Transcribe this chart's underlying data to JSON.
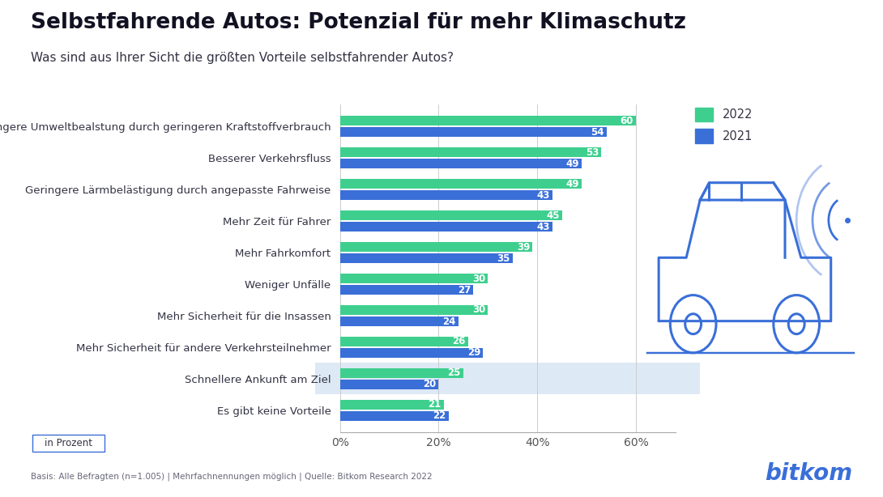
{
  "title": "Selbstfahrende Autos: Potenzial für mehr Klimaschutz",
  "subtitle": "Was sind aus Ihrer Sicht die größten Vorteile selbstfahrender Autos?",
  "categories": [
    "Es gibt keine Vorteile",
    "Schnellere Ankunft am Ziel",
    "Mehr Sicherheit für andere Verkehrsteilnehmer",
    "Mehr Sicherheit für die Insassen",
    "Weniger Unfälle",
    "Mehr Fahrkomfort",
    "Mehr Zeit für Fahrer",
    "Geringere Lärmbelästigung durch angepasste Fahrweise",
    "Besserer Verkehrsfluss",
    "Geringere Umweltbealstung durch geringeren Kraftstoffverbrauch"
  ],
  "values_2022": [
    21,
    25,
    26,
    30,
    30,
    39,
    45,
    49,
    53,
    60
  ],
  "values_2021": [
    22,
    20,
    29,
    24,
    27,
    35,
    43,
    43,
    49,
    54
  ],
  "color_2022": "#3ecf8e",
  "color_2021": "#3a6fd8",
  "highlight_category_idx": 1,
  "highlight_color": "#dde9f5",
  "footnote": "Basis: Alle Befragten (n=1.005) | Mehrfachnennungen möglich | Quelle: Bitkom Research 2022",
  "inprozent_label": "in Prozent",
  "background_color": "#ffffff",
  "xlim": [
    0,
    68
  ],
  "xticks": [
    0,
    20,
    40,
    60
  ],
  "xticklabels": [
    "0%",
    "20%",
    "40%",
    "60%"
  ],
  "bar_height": 0.32,
  "bar_gap": 0.04,
  "label_fontsize": 8.5,
  "category_fontsize": 9.5,
  "tick_fontsize": 10
}
